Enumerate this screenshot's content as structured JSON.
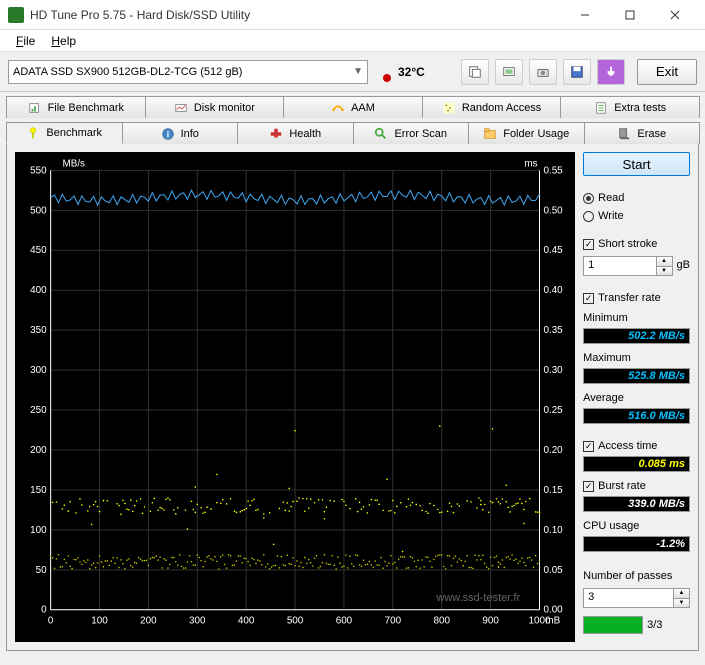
{
  "window": {
    "title": "HD Tune Pro 5.75 - Hard Disk/SSD Utility"
  },
  "menu": {
    "file": "File",
    "help": "Help"
  },
  "toolbar": {
    "drive": "ADATA SSD SX900 512GB-DL2-TCG (512 gB)",
    "temperature": "32°C",
    "exit": "Exit"
  },
  "tabs_row1": [
    "File Benchmark",
    "Disk monitor",
    "AAM",
    "Random Access",
    "Extra tests"
  ],
  "tabs_row2": [
    "Benchmark",
    "Info",
    "Health",
    "Error Scan",
    "Folder Usage",
    "Erase"
  ],
  "tabs_row2_active": 0,
  "side": {
    "start": "Start",
    "read": "Read",
    "write": "Write",
    "short_stroke": "Short stroke",
    "short_stroke_val": "1",
    "short_stroke_unit": "gB",
    "transfer_rate": "Transfer rate",
    "minimum": "Minimum",
    "minimum_val": "502.2 MB/s",
    "maximum": "Maximum",
    "maximum_val": "525.8 MB/s",
    "average": "Average",
    "average_val": "516.0 MB/s",
    "access_time": "Access time",
    "access_time_val": "0.085 ms",
    "burst_rate": "Burst rate",
    "burst_rate_val": "339.0 MB/s",
    "cpu_usage": "CPU usage",
    "cpu_usage_val": "-1.2%",
    "num_passes": "Number of passes",
    "num_passes_val": "3",
    "progress_text": "3/3",
    "progress_pct": 100
  },
  "chart": {
    "y1_label": "MB/s",
    "y2_label": "ms",
    "x_label": "mB",
    "y1_ticks": [
      0,
      50,
      100,
      150,
      200,
      250,
      300,
      350,
      400,
      450,
      500,
      550
    ],
    "y2_ticks": [
      "0.00",
      "0.05",
      "0.10",
      "0.15",
      "0.20",
      "0.25",
      "0.30",
      "0.35",
      "0.40",
      "0.45",
      "0.50",
      "0.55"
    ],
    "x_ticks": [
      0,
      100,
      200,
      300,
      400,
      500,
      600,
      700,
      800,
      900,
      1000
    ],
    "x_max": 1000,
    "y1_max": 550,
    "read_series_y": 516,
    "read_jitter": 12,
    "access_band_ms": 0.085,
    "access_high_ms": 0.13,
    "burst_band_ms": 0.06,
    "watermark": "www.ssd-tester.fr",
    "colors": {
      "bg": "#000000",
      "grid": "#333333",
      "axis": "#ffffff",
      "read": "#3fa9f5",
      "access": "#ffff00",
      "burst": "#c0c000"
    }
  }
}
